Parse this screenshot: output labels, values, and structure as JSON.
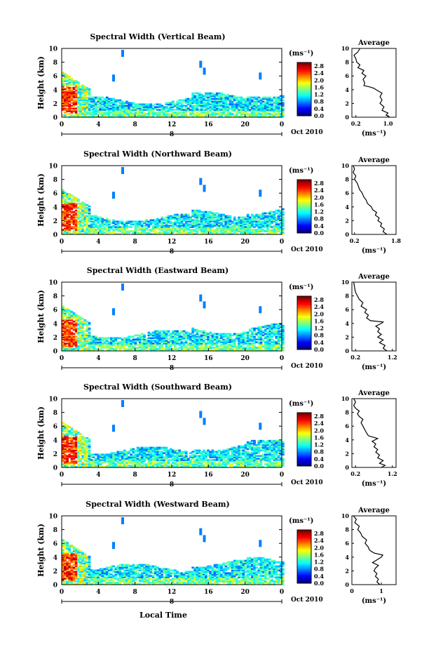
{
  "figure": {
    "x_axis_title": "Local Time",
    "date_label": "Oct 2010",
    "day_label": "8",
    "y_axis_title": "Height (km)",
    "colorbar_unit": "(ms⁻¹)",
    "average_title": "Average",
    "average_unit": "(ms⁻¹)"
  },
  "chart_data": [
    {
      "type": "heatmap",
      "title": "Spectral Width (Vertical Beam)",
      "xlabel": "Local Time",
      "ylabel": "Height (km)",
      "x_ticks": [
        "0",
        "4",
        "8",
        "12",
        "16",
        "20",
        "0"
      ],
      "y_ticks": [
        "0",
        "2",
        "4",
        "6",
        "8",
        "10"
      ],
      "xlim": [
        0,
        24
      ],
      "ylim": [
        0,
        10
      ],
      "colorbar_ticks": [
        "0.0",
        "0.4",
        "0.8",
        "1.2",
        "1.6",
        "2.0",
        "2.4",
        "2.8"
      ],
      "colorbar_range": [
        0,
        3.0
      ],
      "average": {
        "title": "Average",
        "xlabel": "(ms⁻¹)",
        "x_ticks": [
          "0.2",
          "1.0"
        ],
        "xlim": [
          0.1,
          1.2
        ],
        "y_ticks": [
          "0",
          "2",
          "4",
          "6",
          "8",
          "10"
        ],
        "profile": [
          [
            1.05,
            0
          ],
          [
            0.95,
            0.3
          ],
          [
            1.0,
            0.6
          ],
          [
            0.85,
            1.0
          ],
          [
            0.9,
            1.5
          ],
          [
            0.8,
            2.0
          ],
          [
            0.85,
            2.5
          ],
          [
            0.8,
            3.0
          ],
          [
            0.85,
            3.5
          ],
          [
            0.7,
            4.0
          ],
          [
            0.65,
            4.2
          ],
          [
            0.55,
            4.4
          ],
          [
            0.4,
            4.6
          ],
          [
            0.42,
            5.0
          ],
          [
            0.38,
            5.5
          ],
          [
            0.45,
            6.0
          ],
          [
            0.35,
            6.4
          ],
          [
            0.4,
            6.8
          ],
          [
            0.25,
            7.2
          ],
          [
            0.3,
            7.6
          ],
          [
            0.22,
            8.0
          ],
          [
            0.2,
            8.5
          ],
          [
            0.15,
            9.0
          ],
          [
            0.25,
            9.5
          ],
          [
            0.3,
            10.0
          ]
        ]
      }
    },
    {
      "type": "heatmap",
      "title": "Spectral Width (Northward Beam)",
      "xlabel": "Local Time",
      "ylabel": "Height (km)",
      "x_ticks": [
        "0",
        "4",
        "8",
        "12",
        "16",
        "20",
        "0"
      ],
      "y_ticks": [
        "0",
        "2",
        "4",
        "6",
        "8",
        "10"
      ],
      "xlim": [
        0,
        24
      ],
      "ylim": [
        0,
        10
      ],
      "colorbar_ticks": [
        "0.0",
        "0.4",
        "0.8",
        "1.2",
        "1.6",
        "2.0",
        "2.4",
        "2.8"
      ],
      "colorbar_range": [
        0,
        3.0
      ],
      "average": {
        "title": "Average",
        "xlabel": "(ms⁻¹)",
        "x_ticks": [
          "0.2",
          "1.8"
        ],
        "xlim": [
          0.1,
          1.8
        ],
        "y_ticks": [
          "0",
          "2",
          "4",
          "6",
          "8",
          "10"
        ],
        "profile": [
          [
            1.45,
            0
          ],
          [
            1.3,
            0.4
          ],
          [
            1.35,
            0.8
          ],
          [
            1.2,
            1.2
          ],
          [
            1.25,
            1.6
          ],
          [
            1.1,
            2.0
          ],
          [
            1.15,
            2.4
          ],
          [
            1.0,
            2.8
          ],
          [
            1.05,
            3.2
          ],
          [
            0.9,
            3.6
          ],
          [
            0.85,
            4.0
          ],
          [
            0.7,
            4.5
          ],
          [
            0.65,
            5.0
          ],
          [
            0.55,
            5.5
          ],
          [
            0.5,
            6.0
          ],
          [
            0.4,
            6.5
          ],
          [
            0.35,
            7.0
          ],
          [
            0.3,
            7.5
          ],
          [
            0.2,
            8.0
          ],
          [
            0.25,
            8.5
          ],
          [
            0.15,
            9.0
          ],
          [
            0.2,
            9.5
          ],
          [
            0.15,
            10.0
          ]
        ]
      }
    },
    {
      "type": "heatmap",
      "title": "Spectral Width (Eastward Beam)",
      "xlabel": "Local Time",
      "ylabel": "Height (km)",
      "x_ticks": [
        "0",
        "4",
        "8",
        "12",
        "16",
        "20",
        "0"
      ],
      "y_ticks": [
        "0",
        "2",
        "4",
        "6",
        "8",
        "10"
      ],
      "xlim": [
        0,
        24
      ],
      "ylim": [
        0,
        10
      ],
      "colorbar_ticks": [
        "0.0",
        "0.4",
        "0.8",
        "1.2",
        "1.6",
        "2.0",
        "2.4",
        "2.8"
      ],
      "colorbar_range": [
        0,
        3.0
      ],
      "average": {
        "title": "Average",
        "xlabel": "(ms⁻¹)",
        "x_ticks": [
          "0.2",
          "1.2"
        ],
        "xlim": [
          0.1,
          1.3
        ],
        "y_ticks": [
          "0",
          "2",
          "4",
          "6",
          "8",
          "10"
        ],
        "profile": [
          [
            1.05,
            0
          ],
          [
            0.95,
            0.4
          ],
          [
            1.0,
            0.8
          ],
          [
            0.85,
            1.2
          ],
          [
            0.95,
            1.6
          ],
          [
            0.8,
            2.0
          ],
          [
            0.9,
            2.4
          ],
          [
            0.8,
            2.8
          ],
          [
            0.85,
            3.2
          ],
          [
            0.75,
            3.6
          ],
          [
            0.9,
            4.0
          ],
          [
            0.95,
            4.2
          ],
          [
            0.6,
            4.4
          ],
          [
            0.5,
            4.8
          ],
          [
            0.55,
            5.2
          ],
          [
            0.45,
            5.6
          ],
          [
            0.5,
            6.0
          ],
          [
            0.35,
            6.5
          ],
          [
            0.4,
            7.0
          ],
          [
            0.3,
            7.5
          ],
          [
            0.25,
            8.0
          ],
          [
            0.2,
            8.5
          ],
          [
            0.18,
            9.0
          ],
          [
            0.15,
            10.0
          ]
        ]
      }
    },
    {
      "type": "heatmap",
      "title": "Spectral Width (Southward Beam)",
      "xlabel": "Local Time",
      "ylabel": "Height (km)",
      "x_ticks": [
        "0",
        "4",
        "8",
        "12",
        "16",
        "20",
        "0"
      ],
      "y_ticks": [
        "0",
        "2",
        "4",
        "6",
        "8",
        "10"
      ],
      "xlim": [
        0,
        24
      ],
      "ylim": [
        0,
        10
      ],
      "colorbar_ticks": [
        "0.0",
        "0.4",
        "0.8",
        "1.2",
        "1.6",
        "2.0",
        "2.4",
        "2.8"
      ],
      "colorbar_range": [
        0,
        3.0
      ],
      "average": {
        "title": "Average",
        "xlabel": "(ms⁻¹)",
        "x_ticks": [
          "0.2",
          "1.2"
        ],
        "xlim": [
          0.1,
          1.3
        ],
        "y_ticks": [
          "0",
          "2",
          "4",
          "6",
          "8",
          "10"
        ],
        "profile": [
          [
            0.9,
            0
          ],
          [
            1.0,
            0.3
          ],
          [
            0.85,
            0.6
          ],
          [
            0.95,
            1.0
          ],
          [
            0.8,
            1.4
          ],
          [
            0.85,
            1.8
          ],
          [
            0.75,
            2.2
          ],
          [
            0.8,
            2.6
          ],
          [
            0.7,
            3.0
          ],
          [
            0.75,
            3.4
          ],
          [
            0.65,
            3.8
          ],
          [
            0.8,
            4.2
          ],
          [
            0.55,
            4.6
          ],
          [
            0.5,
            5.0
          ],
          [
            0.45,
            5.5
          ],
          [
            0.4,
            6.0
          ],
          [
            0.35,
            6.5
          ],
          [
            0.4,
            7.0
          ],
          [
            0.3,
            7.4
          ],
          [
            0.25,
            7.8
          ],
          [
            0.3,
            8.2
          ],
          [
            0.2,
            8.6
          ],
          [
            0.15,
            9.0
          ],
          [
            0.2,
            9.5
          ],
          [
            0.15,
            10.0
          ]
        ]
      }
    },
    {
      "type": "heatmap",
      "title": "Spectral Width (Westward Beam)",
      "xlabel": "Local Time",
      "ylabel": "Height (km)",
      "x_ticks": [
        "0",
        "4",
        "8",
        "12",
        "16",
        "20",
        "0"
      ],
      "y_ticks": [
        "0",
        "2",
        "4",
        "6",
        "8",
        "10"
      ],
      "xlim": [
        0,
        24
      ],
      "ylim": [
        0,
        10
      ],
      "colorbar_ticks": [
        "0.0",
        "0.4",
        "0.8",
        "1.2",
        "1.6",
        "2.0",
        "2.4",
        "2.8"
      ],
      "colorbar_range": [
        0,
        3.0
      ],
      "average": {
        "title": "Average",
        "xlabel": "(ms⁻¹)",
        "x_ticks": [
          "0",
          "1"
        ],
        "xlim": [
          0,
          1.5
        ],
        "y_ticks": [
          "0",
          "2",
          "4",
          "6",
          "8",
          "10"
        ],
        "profile": [
          [
            0.95,
            0
          ],
          [
            0.85,
            0.4
          ],
          [
            0.9,
            0.8
          ],
          [
            0.8,
            1.2
          ],
          [
            0.85,
            1.6
          ],
          [
            0.75,
            2.0
          ],
          [
            0.8,
            2.4
          ],
          [
            0.9,
            2.8
          ],
          [
            0.7,
            3.2
          ],
          [
            0.85,
            3.6
          ],
          [
            1.0,
            4.0
          ],
          [
            1.05,
            4.3
          ],
          [
            0.75,
            4.6
          ],
          [
            0.6,
            5.0
          ],
          [
            0.55,
            5.5
          ],
          [
            0.45,
            6.0
          ],
          [
            0.5,
            6.5
          ],
          [
            0.35,
            7.0
          ],
          [
            0.3,
            7.5
          ],
          [
            0.2,
            8.0
          ],
          [
            0.25,
            8.5
          ],
          [
            0.1,
            9.0
          ],
          [
            0.15,
            9.5
          ],
          [
            0.05,
            10.0
          ]
        ]
      }
    }
  ]
}
